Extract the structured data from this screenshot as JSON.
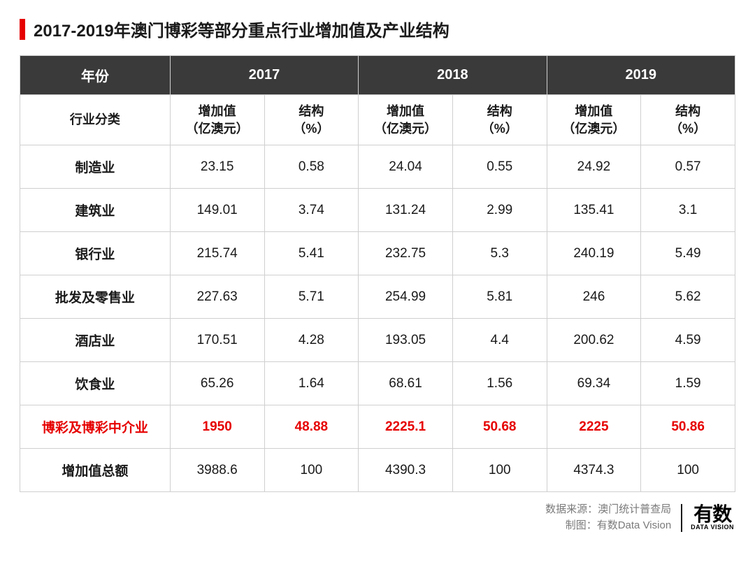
{
  "title": "2017-2019年澳门博彩等部分重点行业增加值及产业结构",
  "table": {
    "header_row1": {
      "year_label": "年份",
      "years": [
        "2017",
        "2018",
        "2019"
      ]
    },
    "header_row2": {
      "industry_label": "行业分类",
      "sub_cols": [
        "增加值\n（亿澳元）",
        "结构\n（%）",
        "增加值\n（亿澳元）",
        "结构\n（%）",
        "增加值\n（亿澳元）",
        "结构\n（%）"
      ]
    },
    "rows": [
      {
        "label": "制造业",
        "cells": [
          "23.15",
          "0.58",
          "24.04",
          "0.55",
          "24.92",
          "0.57"
        ],
        "highlight": false
      },
      {
        "label": "建筑业",
        "cells": [
          "149.01",
          "3.74",
          "131.24",
          "2.99",
          "135.41",
          "3.1"
        ],
        "highlight": false
      },
      {
        "label": "银行业",
        "cells": [
          "215.74",
          "5.41",
          "232.75",
          "5.3",
          "240.19",
          "5.49"
        ],
        "highlight": false
      },
      {
        "label": "批发及零售业",
        "cells": [
          "227.63",
          "5.71",
          "254.99",
          "5.81",
          "246",
          "5.62"
        ],
        "highlight": false
      },
      {
        "label": "酒店业",
        "cells": [
          "170.51",
          "4.28",
          "193.05",
          "4.4",
          "200.62",
          "4.59"
        ],
        "highlight": false
      },
      {
        "label": "饮食业",
        "cells": [
          "65.26",
          "1.64",
          "68.61",
          "1.56",
          "69.34",
          "1.59"
        ],
        "highlight": false
      },
      {
        "label": "博彩及博彩中介业",
        "cells": [
          "1950",
          "48.88",
          "2225.1",
          "50.68",
          "2225",
          "50.86"
        ],
        "highlight": true
      },
      {
        "label": "增加值总额",
        "cells": [
          "3988.6",
          "100",
          "4390.3",
          "100",
          "4374.3",
          "100"
        ],
        "highlight": false
      }
    ]
  },
  "footer": {
    "source_line": "数据来源：澳门统计普查局",
    "credit_line": "制图：有数Data Vision",
    "brand_cn": "有数",
    "brand_en": "DATA VISION"
  },
  "colors": {
    "accent": "#e60000",
    "header_bg": "#3a3a3a",
    "border": "#cfcfcf",
    "text": "#1a1a1a",
    "muted": "#7a7a7a"
  }
}
